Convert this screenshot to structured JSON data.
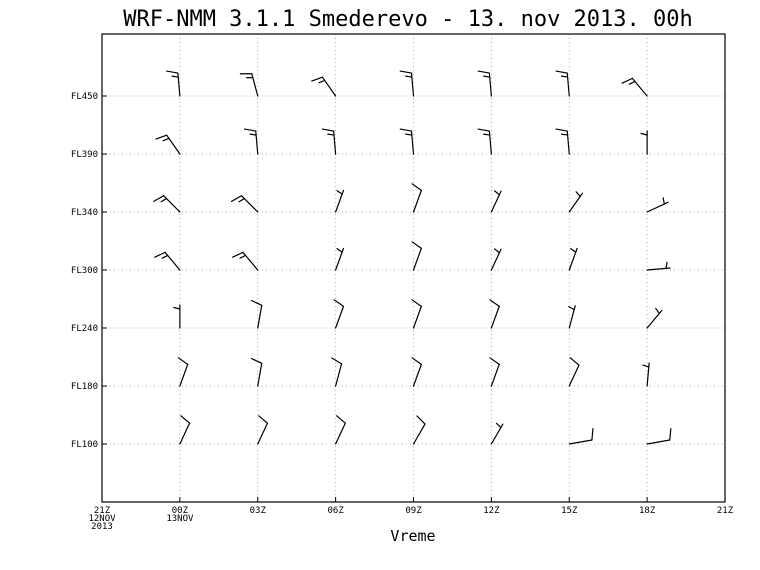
{
  "chart_data": {
    "type": "wind-barb",
    "title": "WRF-NMM 3.1.1 Smederevo - 13. nov 2013. 00h",
    "xlabel": "Vreme",
    "ylabel": "",
    "x_ticks": [
      {
        "label": "21Z",
        "sub": [
          "12NOV",
          "2013"
        ]
      },
      {
        "label": "00Z",
        "sub": [
          "13NOV"
        ]
      },
      {
        "label": "03Z",
        "sub": []
      },
      {
        "label": "06Z",
        "sub": []
      },
      {
        "label": "09Z",
        "sub": []
      },
      {
        "label": "12Z",
        "sub": []
      },
      {
        "label": "15Z",
        "sub": []
      },
      {
        "label": "18Z",
        "sub": []
      },
      {
        "label": "21Z",
        "sub": []
      }
    ],
    "y_levels": [
      "FL450",
      "FL390",
      "FL340",
      "FL300",
      "FL240",
      "FL180",
      "FL100"
    ],
    "grid": true,
    "barb_times": [
      "00Z",
      "03Z",
      "06Z",
      "09Z",
      "12Z",
      "15Z",
      "18Z"
    ],
    "barbs": [
      [
        {
          "dir": 355,
          "f": 1,
          "h": 1
        },
        {
          "dir": 345,
          "f": 1,
          "h": 1
        },
        {
          "dir": 325,
          "f": 1,
          "h": 1
        },
        {
          "dir": 355,
          "f": 1,
          "h": 1
        },
        {
          "dir": 355,
          "f": 1,
          "h": 1
        },
        {
          "dir": 355,
          "f": 1,
          "h": 1
        },
        {
          "dir": 320,
          "f": 1,
          "h": 1
        }
      ],
      [
        {
          "dir": 325,
          "f": 1,
          "h": 1
        },
        {
          "dir": 355,
          "f": 1,
          "h": 1
        },
        {
          "dir": 355,
          "f": 1,
          "h": 1
        },
        {
          "dir": 355,
          "f": 1,
          "h": 1
        },
        {
          "dir": 355,
          "f": 1,
          "h": 1
        },
        {
          "dir": 355,
          "f": 1,
          "h": 1
        },
        {
          "dir": 0,
          "f": 0,
          "h": 1
        }
      ],
      [
        {
          "dir": 315,
          "f": 1,
          "h": 1
        },
        {
          "dir": 315,
          "f": 1,
          "h": 1
        },
        {
          "dir": 20,
          "f": 0,
          "h": 1
        },
        {
          "dir": 20,
          "f": 1,
          "h": 0
        },
        {
          "dir": 25,
          "f": 0,
          "h": 1
        },
        {
          "dir": 35,
          "f": 0,
          "h": 1
        },
        {
          "dir": 65,
          "f": 0,
          "h": 1
        }
      ],
      [
        {
          "dir": 320,
          "f": 1,
          "h": 1
        },
        {
          "dir": 320,
          "f": 1,
          "h": 1
        },
        {
          "dir": 20,
          "f": 0,
          "h": 1
        },
        {
          "dir": 20,
          "f": 1,
          "h": 0
        },
        {
          "dir": 25,
          "f": 0,
          "h": 1
        },
        {
          "dir": 20,
          "f": 0,
          "h": 1
        },
        {
          "dir": 85,
          "f": 0,
          "h": 1
        }
      ],
      [
        {
          "dir": 0,
          "f": 0,
          "h": 1
        },
        {
          "dir": 10,
          "f": 1,
          "h": 0
        },
        {
          "dir": 20,
          "f": 1,
          "h": 0
        },
        {
          "dir": 20,
          "f": 1,
          "h": 0
        },
        {
          "dir": 20,
          "f": 1,
          "h": 0
        },
        {
          "dir": 15,
          "f": 0,
          "h": 1
        },
        {
          "dir": 40,
          "f": 0,
          "h": 1
        }
      ],
      [
        {
          "dir": 20,
          "f": 1,
          "h": 0
        },
        {
          "dir": 10,
          "f": 1,
          "h": 0
        },
        {
          "dir": 15,
          "f": 1,
          "h": 0
        },
        {
          "dir": 20,
          "f": 1,
          "h": 0
        },
        {
          "dir": 20,
          "f": 1,
          "h": 0
        },
        {
          "dir": 25,
          "f": 1,
          "h": 0
        },
        {
          "dir": 5,
          "f": 0,
          "h": 1
        }
      ],
      [
        {
          "dir": 25,
          "f": 1,
          "h": 0
        },
        {
          "dir": 25,
          "f": 1,
          "h": 0
        },
        {
          "dir": 25,
          "f": 1,
          "h": 0
        },
        {
          "dir": 30,
          "f": 1,
          "h": 0
        },
        {
          "dir": 30,
          "f": 0,
          "h": 1
        },
        {
          "dir": 80,
          "f": 1,
          "h": 0
        },
        {
          "dir": 80,
          "f": 1,
          "h": 0
        }
      ]
    ]
  }
}
